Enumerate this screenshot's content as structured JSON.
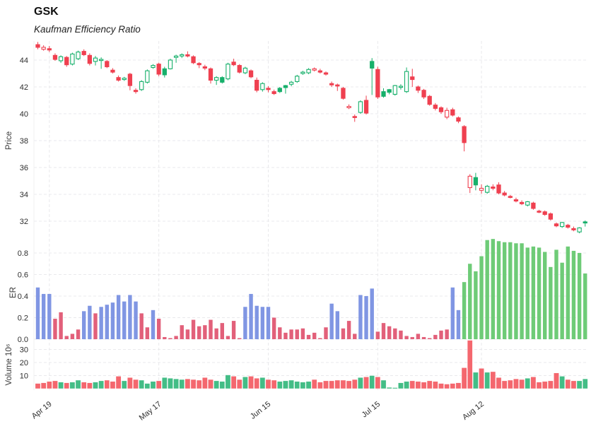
{
  "header": {
    "title": "GSK",
    "subtitle": "Kaufman Efficiency Ratio"
  },
  "colors": {
    "up": "#17b06b",
    "down": "#ef4050",
    "er_blue": "#8096e3",
    "er_pink": "#e2607a",
    "er_green": "#6ecb77",
    "vol_up": "#43bd86",
    "vol_down": "#f4676e",
    "grid": "#e9e9ec",
    "tick_text": "#2e2e2e"
  },
  "chart_data": {
    "type": "candlestick+bar",
    "title": "GSK",
    "subtitle": "Kaufman Efficiency Ratio",
    "n_points": 96,
    "x_axis": {
      "ticks": [
        {
          "label": "Apr 19",
          "index": 2
        },
        {
          "label": "May 17",
          "index": 21
        },
        {
          "label": "Jun 15",
          "index": 40
        },
        {
          "label": "Jul 15",
          "index": 59
        },
        {
          "label": "Aug 12",
          "index": 77
        }
      ]
    },
    "price_panel": {
      "ylabel": "Price",
      "ticks": [
        44,
        42,
        40,
        38,
        36,
        34,
        32
      ],
      "ylim": [
        31.0,
        45.45
      ],
      "candles_format": [
        "open",
        "high",
        "low",
        "close",
        "dir(1=up)",
        "hollow(1=yes)"
      ],
      "candles": [
        [
          45.15,
          45.35,
          44.8,
          44.95,
          0,
          0
        ],
        [
          44.95,
          45.1,
          44.7,
          44.8,
          0,
          1
        ],
        [
          44.85,
          45.05,
          44.6,
          44.75,
          0,
          0
        ],
        [
          44.35,
          44.5,
          43.95,
          44.05,
          0,
          0
        ],
        [
          43.95,
          44.35,
          43.8,
          44.25,
          1,
          1
        ],
        [
          44.2,
          44.3,
          43.5,
          43.65,
          0,
          0
        ],
        [
          43.7,
          44.55,
          43.6,
          44.45,
          1,
          1
        ],
        [
          44.1,
          44.7,
          44.0,
          44.6,
          1,
          1
        ],
        [
          44.65,
          44.8,
          44.3,
          44.4,
          0,
          0
        ],
        [
          44.35,
          44.5,
          43.6,
          43.75,
          0,
          0
        ],
        [
          43.9,
          44.3,
          43.6,
          44.15,
          1,
          1
        ],
        [
          44.05,
          44.2,
          43.35,
          44.0,
          1,
          1
        ],
        [
          43.9,
          44.0,
          43.4,
          43.5,
          0,
          0
        ],
        [
          43.25,
          43.4,
          43.0,
          43.1,
          0,
          0
        ],
        [
          42.7,
          42.85,
          42.4,
          42.5,
          0,
          0
        ],
        [
          42.55,
          42.75,
          42.45,
          42.65,
          1,
          1
        ],
        [
          42.95,
          43.05,
          41.75,
          42.1,
          0,
          0
        ],
        [
          41.75,
          41.9,
          41.5,
          41.65,
          0,
          0
        ],
        [
          41.8,
          42.5,
          41.7,
          42.4,
          1,
          1
        ],
        [
          42.35,
          43.3,
          42.25,
          43.2,
          1,
          1
        ],
        [
          43.45,
          43.7,
          43.35,
          43.6,
          1,
          1
        ],
        [
          43.7,
          43.8,
          42.8,
          42.95,
          0,
          0
        ],
        [
          42.9,
          43.5,
          42.7,
          43.35,
          1,
          0
        ],
        [
          43.35,
          44.1,
          43.3,
          44.0,
          1,
          1
        ],
        [
          44.2,
          44.4,
          43.8,
          44.3,
          1,
          1
        ],
        [
          44.3,
          44.5,
          44.15,
          44.4,
          1,
          1
        ],
        [
          44.4,
          44.65,
          44.2,
          44.3,
          0,
          0
        ],
        [
          44.25,
          44.35,
          43.7,
          43.8,
          0,
          0
        ],
        [
          43.75,
          43.85,
          43.4,
          43.65,
          0,
          0
        ],
        [
          43.5,
          43.65,
          43.25,
          43.4,
          0,
          0
        ],
        [
          43.35,
          43.45,
          42.25,
          42.5,
          0,
          0
        ],
        [
          42.5,
          42.8,
          42.15,
          42.7,
          1,
          1
        ],
        [
          42.35,
          42.8,
          42.25,
          42.7,
          1,
          0
        ],
        [
          42.6,
          43.8,
          42.5,
          43.7,
          1,
          1
        ],
        [
          43.85,
          44.1,
          43.55,
          43.65,
          0,
          0
        ],
        [
          43.6,
          43.7,
          43.0,
          43.1,
          0,
          0
        ],
        [
          43.05,
          43.5,
          42.95,
          43.4,
          1,
          1
        ],
        [
          43.2,
          43.3,
          42.65,
          42.75,
          0,
          0
        ],
        [
          42.5,
          42.7,
          41.6,
          41.75,
          0,
          0
        ],
        [
          41.8,
          42.35,
          41.65,
          42.25,
          1,
          1
        ],
        [
          41.9,
          42.05,
          41.6,
          41.8,
          0,
          0
        ],
        [
          41.65,
          41.8,
          41.4,
          41.5,
          0,
          0
        ],
        [
          41.65,
          42.0,
          41.55,
          41.9,
          1,
          0
        ],
        [
          41.95,
          42.15,
          41.5,
          42.1,
          1,
          0
        ],
        [
          42.2,
          42.45,
          42.05,
          42.35,
          1,
          1
        ],
        [
          42.4,
          42.9,
          42.3,
          42.8,
          1,
          1
        ],
        [
          43.0,
          43.2,
          42.9,
          43.1,
          1,
          1
        ],
        [
          43.05,
          43.4,
          42.95,
          43.3,
          1,
          1
        ],
        [
          43.35,
          43.45,
          43.15,
          43.25,
          0,
          1
        ],
        [
          43.2,
          43.35,
          43.0,
          43.1,
          0,
          0
        ],
        [
          43.05,
          43.15,
          42.85,
          42.95,
          0,
          0
        ],
        [
          42.25,
          42.4,
          42.0,
          42.15,
          0,
          0
        ],
        [
          42.15,
          42.25,
          41.7,
          42.1,
          0,
          0
        ],
        [
          41.9,
          42.0,
          41.05,
          41.15,
          0,
          0
        ],
        [
          40.55,
          40.7,
          40.35,
          40.45,
          0,
          1
        ],
        [
          39.8,
          39.95,
          39.4,
          39.8,
          0,
          0
        ],
        [
          40.1,
          41.0,
          40.0,
          40.9,
          1,
          1
        ],
        [
          41.0,
          41.35,
          39.95,
          40.05,
          0,
          0
        ],
        [
          43.4,
          44.15,
          41.4,
          43.9,
          1,
          0
        ],
        [
          43.3,
          43.5,
          41.1,
          41.25,
          0,
          0
        ],
        [
          41.3,
          41.9,
          41.2,
          41.65,
          1,
          0
        ],
        [
          41.6,
          41.85,
          41.45,
          41.8,
          1,
          0
        ],
        [
          41.45,
          42.15,
          41.35,
          42.1,
          1,
          1
        ],
        [
          42.0,
          42.2,
          41.8,
          42.05,
          1,
          1
        ],
        [
          41.65,
          43.45,
          41.55,
          43.15,
          1,
          1
        ],
        [
          42.75,
          43.35,
          42.0,
          42.55,
          0,
          0
        ],
        [
          42.0,
          42.1,
          41.55,
          41.75,
          0,
          0
        ],
        [
          41.75,
          41.85,
          41.1,
          41.25,
          0,
          0
        ],
        [
          41.3,
          41.4,
          40.6,
          40.7,
          0,
          0
        ],
        [
          40.65,
          40.8,
          40.25,
          40.4,
          0,
          0
        ],
        [
          40.45,
          40.55,
          40.0,
          40.15,
          0,
          0
        ],
        [
          40.25,
          40.45,
          39.6,
          39.75,
          0,
          1
        ],
        [
          40.3,
          40.45,
          39.8,
          39.9,
          0,
          0
        ],
        [
          39.7,
          39.8,
          39.3,
          39.45,
          0,
          0
        ],
        [
          39.05,
          39.15,
          37.2,
          37.85,
          0,
          0
        ],
        [
          35.35,
          35.5,
          34.1,
          34.5,
          0,
          1
        ],
        [
          34.7,
          35.6,
          34.3,
          35.25,
          1,
          0
        ],
        [
          34.45,
          34.75,
          34.05,
          34.3,
          0,
          1
        ],
        [
          34.15,
          34.7,
          34.05,
          34.6,
          1,
          1
        ],
        [
          34.55,
          34.75,
          34.3,
          34.45,
          0,
          0
        ],
        [
          34.7,
          34.9,
          34.0,
          34.1,
          0,
          0
        ],
        [
          34.1,
          34.25,
          33.85,
          33.95,
          0,
          0
        ],
        [
          33.85,
          33.95,
          33.7,
          33.8,
          0,
          0
        ],
        [
          33.6,
          33.75,
          33.4,
          33.5,
          0,
          0
        ],
        [
          33.4,
          33.55,
          33.2,
          33.3,
          0,
          0
        ],
        [
          33.2,
          33.5,
          33.1,
          33.45,
          1,
          1
        ],
        [
          33.35,
          33.45,
          32.85,
          32.95,
          0,
          0
        ],
        [
          32.75,
          32.85,
          32.6,
          32.7,
          0,
          0
        ],
        [
          32.7,
          32.8,
          32.4,
          32.5,
          0,
          0
        ],
        [
          32.55,
          32.65,
          32.05,
          32.15,
          0,
          0
        ],
        [
          31.8,
          31.9,
          31.55,
          31.65,
          0,
          0
        ],
        [
          31.6,
          31.95,
          31.5,
          31.9,
          1,
          1
        ],
        [
          31.7,
          31.8,
          31.45,
          31.55,
          0,
          0
        ],
        [
          31.45,
          31.6,
          31.25,
          31.35,
          0,
          0
        ],
        [
          31.2,
          31.55,
          31.1,
          31.5,
          1,
          1
        ],
        [
          31.9,
          32.05,
          31.6,
          31.95,
          1,
          0
        ]
      ]
    },
    "er_panel": {
      "ylabel": "ER",
      "ticks": [
        0.0,
        0.2,
        0.4,
        0.6,
        0.8
      ],
      "ylim": [
        0,
        0.95
      ],
      "bars_format": [
        "value",
        "color(b=blue,p=pink,g=green)"
      ],
      "bars": [
        [
          0.48,
          "b"
        ],
        [
          0.42,
          "b"
        ],
        [
          0.42,
          "b"
        ],
        [
          0.19,
          "p"
        ],
        [
          0.25,
          "p"
        ],
        [
          0.03,
          "p"
        ],
        [
          0.05,
          "p"
        ],
        [
          0.09,
          "p"
        ],
        [
          0.26,
          "b"
        ],
        [
          0.31,
          "b"
        ],
        [
          0.24,
          "p"
        ],
        [
          0.3,
          "b"
        ],
        [
          0.32,
          "b"
        ],
        [
          0.34,
          "b"
        ],
        [
          0.41,
          "b"
        ],
        [
          0.35,
          "b"
        ],
        [
          0.41,
          "b"
        ],
        [
          0.35,
          "b"
        ],
        [
          0.24,
          "p"
        ],
        [
          0.11,
          "p"
        ],
        [
          0.27,
          "b"
        ],
        [
          0.19,
          "p"
        ],
        [
          0.02,
          "p"
        ],
        [
          0.01,
          "p"
        ],
        [
          0.03,
          "p"
        ],
        [
          0.13,
          "p"
        ],
        [
          0.09,
          "p"
        ],
        [
          0.18,
          "p"
        ],
        [
          0.12,
          "p"
        ],
        [
          0.13,
          "p"
        ],
        [
          0.18,
          "p"
        ],
        [
          0.1,
          "p"
        ],
        [
          0.15,
          "p"
        ],
        [
          0.03,
          "p"
        ],
        [
          0.17,
          "p"
        ],
        [
          0.01,
          "p"
        ],
        [
          0.3,
          "b"
        ],
        [
          0.42,
          "b"
        ],
        [
          0.31,
          "b"
        ],
        [
          0.3,
          "b"
        ],
        [
          0.3,
          "b"
        ],
        [
          0.2,
          "p"
        ],
        [
          0.11,
          "p"
        ],
        [
          0.06,
          "p"
        ],
        [
          0.09,
          "p"
        ],
        [
          0.09,
          "p"
        ],
        [
          0.1,
          "p"
        ],
        [
          0.04,
          "p"
        ],
        [
          0.06,
          "p"
        ],
        [
          0.01,
          "p"
        ],
        [
          0.11,
          "p"
        ],
        [
          0.33,
          "b"
        ],
        [
          0.26,
          "b"
        ],
        [
          0.1,
          "p"
        ],
        [
          0.17,
          "p"
        ],
        [
          0.05,
          "p"
        ],
        [
          0.41,
          "b"
        ],
        [
          0.4,
          "b"
        ],
        [
          0.47,
          "b"
        ],
        [
          0.07,
          "p"
        ],
        [
          0.15,
          "p"
        ],
        [
          0.12,
          "p"
        ],
        [
          0.1,
          "p"
        ],
        [
          0.08,
          "p"
        ],
        [
          0.03,
          "p"
        ],
        [
          0.02,
          "p"
        ],
        [
          0.05,
          "p"
        ],
        [
          0.02,
          "p"
        ],
        [
          0.01,
          "p"
        ],
        [
          0.04,
          "p"
        ],
        [
          0.08,
          "p"
        ],
        [
          0.09,
          "p"
        ],
        [
          0.48,
          "b"
        ],
        [
          0.27,
          "b"
        ],
        [
          0.53,
          "g"
        ],
        [
          0.7,
          "g"
        ],
        [
          0.63,
          "g"
        ],
        [
          0.77,
          "g"
        ],
        [
          0.92,
          "g"
        ],
        [
          0.93,
          "g"
        ],
        [
          0.91,
          "g"
        ],
        [
          0.9,
          "g"
        ],
        [
          0.9,
          "g"
        ],
        [
          0.89,
          "g"
        ],
        [
          0.89,
          "g"
        ],
        [
          0.85,
          "g"
        ],
        [
          0.86,
          "g"
        ],
        [
          0.85,
          "g"
        ],
        [
          0.81,
          "g"
        ],
        [
          0.67,
          "g"
        ],
        [
          0.83,
          "g"
        ],
        [
          0.71,
          "g"
        ],
        [
          0.86,
          "g"
        ],
        [
          0.82,
          "g"
        ],
        [
          0.8,
          "g"
        ],
        [
          0.61,
          "g"
        ]
      ]
    },
    "volume_panel": {
      "ylabel": "Volume 10⁶",
      "ticks": [
        10,
        20,
        30
      ],
      "ylim": [
        0,
        38
      ],
      "values": [
        4,
        4.5,
        5.5,
        6,
        5,
        4.5,
        5,
        6.5,
        5,
        4.5,
        5,
        6,
        6.5,
        5.5,
        9.5,
        6,
        8.5,
        7,
        6.5,
        4,
        5.5,
        6,
        8.5,
        8,
        7.5,
        7,
        7.5,
        7,
        6.5,
        8.5,
        7,
        6,
        5.5,
        10.5,
        9.5,
        7,
        9,
        9.5,
        8,
        8.5,
        7,
        6.5,
        5.5,
        6,
        6.5,
        5.5,
        5,
        5.5,
        7,
        5,
        6,
        6,
        6.5,
        6.5,
        6,
        7,
        8.5,
        9,
        10,
        9,
        6.5,
        1,
        0.8,
        4.5,
        5.5,
        6,
        5.5,
        5,
        6,
        5.5,
        4,
        3.5,
        4,
        4.5,
        16,
        37,
        12.5,
        15.5,
        12.5,
        13,
        8.5,
        6,
        6.5,
        7.5,
        7,
        8,
        9,
        5,
        5.5,
        6,
        12,
        9.5,
        7,
        6,
        6,
        7.5
      ]
    }
  }
}
